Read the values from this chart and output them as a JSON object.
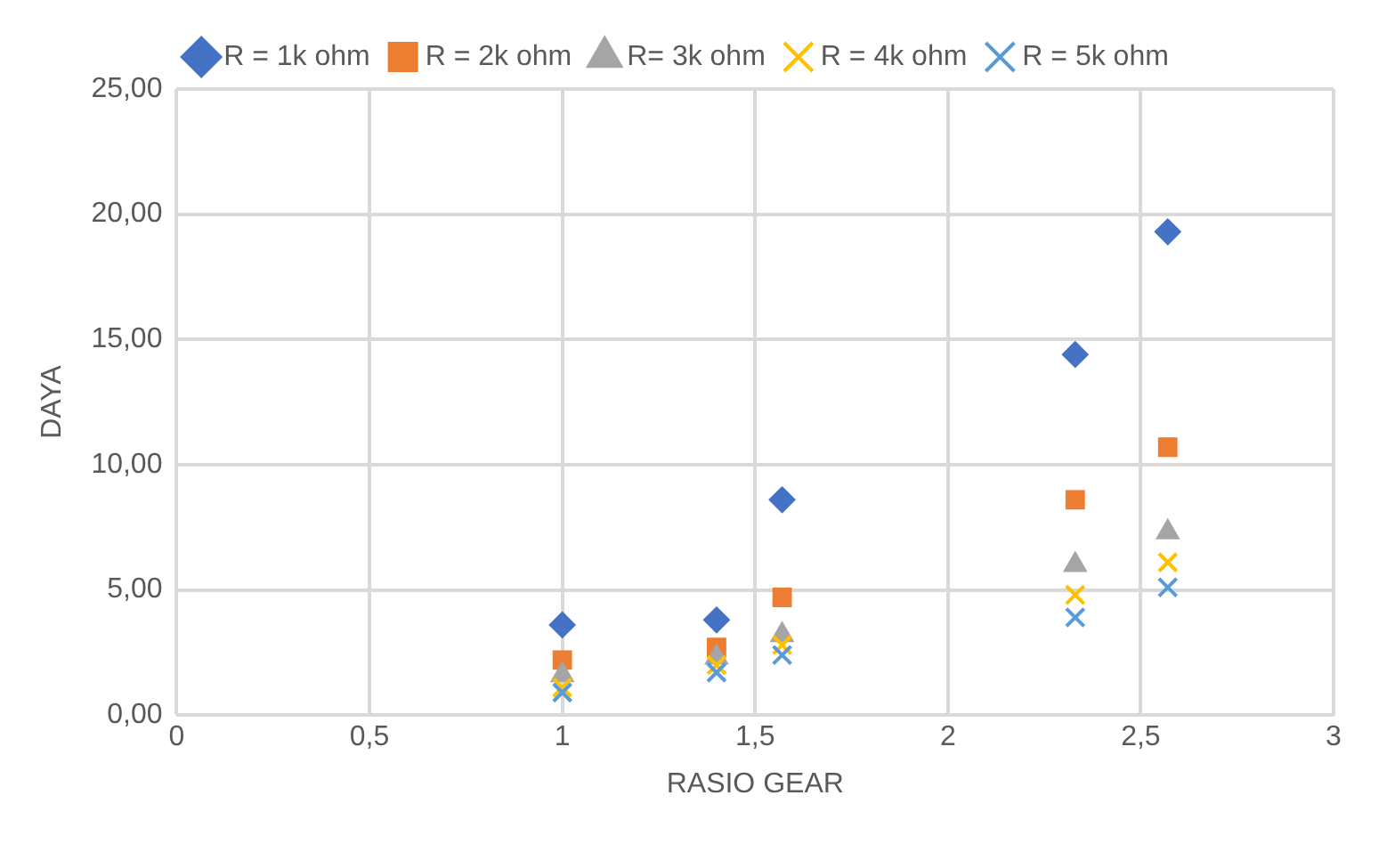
{
  "chart_data": {
    "type": "scatter",
    "xlabel": "RASIO GEAR",
    "ylabel": "DAYA",
    "x": [
      1,
      1.4,
      1.57,
      2.33,
      2.57
    ],
    "series": [
      {
        "name": "R = 1k ohm",
        "color": "#4472c4",
        "marker": "diamond",
        "values": [
          3.6,
          3.8,
          8.6,
          14.4,
          19.3
        ]
      },
      {
        "name": "R = 2k ohm",
        "color": "#ed7d31",
        "marker": "square",
        "values": [
          2.2,
          2.7,
          4.7,
          8.6,
          10.7
        ]
      },
      {
        "name": "R= 3k ohm",
        "color": "#a5a5a5",
        "marker": "triangle",
        "values": [
          1.6,
          2.3,
          3.2,
          6.0,
          7.3
        ]
      },
      {
        "name": "R = 4k ohm",
        "color": "#ffc000",
        "marker": "cross",
        "values": [
          1.1,
          2.0,
          2.8,
          4.8,
          6.1
        ]
      },
      {
        "name": "R = 5k ohm",
        "color": "#5b9bd5",
        "marker": "cross",
        "values": [
          0.9,
          1.7,
          2.4,
          3.9,
          5.1
        ]
      }
    ],
    "xlim": [
      0,
      3
    ],
    "xticks": [
      0,
      {
        "value": 0.5,
        "label": "0,5"
      },
      1,
      {
        "value": 1.5,
        "label": "1,5"
      },
      2,
      {
        "value": 2.5,
        "label": "2,5"
      },
      3
    ],
    "ylim": [
      0,
      25
    ],
    "yticks": [
      {
        "value": 0,
        "label": "0,00"
      },
      {
        "value": 5,
        "label": "5,00"
      },
      {
        "value": 10,
        "label": "10,00"
      },
      {
        "value": 15,
        "label": "15,00"
      },
      {
        "value": 20,
        "label": "20,00"
      },
      {
        "value": 25,
        "label": "25,00"
      }
    ],
    "grid": true,
    "legend": "top"
  }
}
